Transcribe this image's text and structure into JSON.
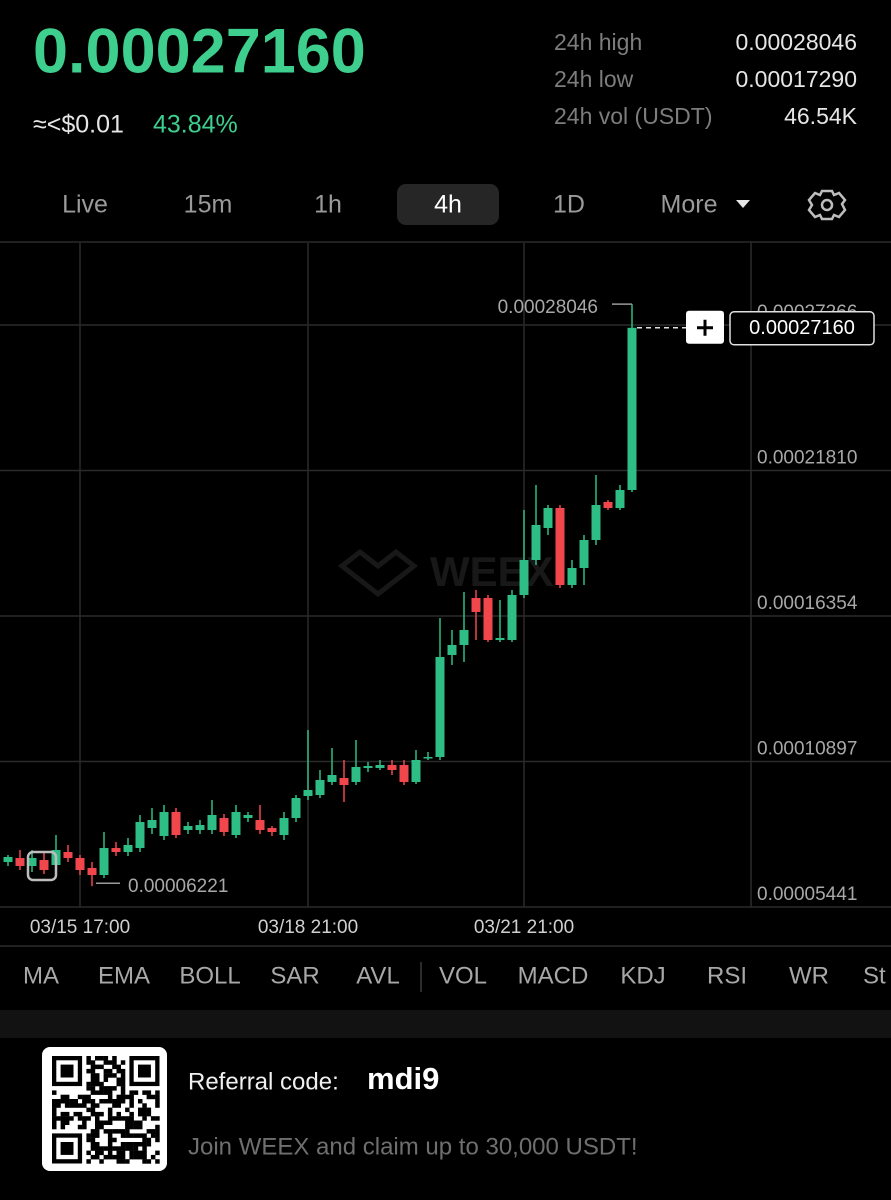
{
  "header": {
    "price": "0.00027160",
    "approx": "≈<$0.01",
    "change": "43.84%",
    "stats": [
      {
        "label": "24h high",
        "value": "0.00028046"
      },
      {
        "label": "24h low",
        "value": "0.00017290"
      },
      {
        "label": "24h vol (USDT)",
        "value": "46.54K"
      }
    ]
  },
  "tabs": [
    "Live",
    "15m",
    "1h",
    "4h",
    "1D",
    "More"
  ],
  "chart_data": {
    "type": "candlestick",
    "up_color": "#2ebd85",
    "down_color": "#f0464c",
    "categories": [
      null,
      null,
      null,
      null,
      null,
      null,
      "03/15 17:00",
      null,
      null,
      null,
      null,
      null,
      null,
      null,
      null,
      null,
      null,
      null,
      null,
      null,
      null,
      null,
      null,
      null,
      null,
      "03/18 21:00",
      null,
      null,
      null,
      null,
      null,
      null,
      null,
      null,
      null,
      null,
      null,
      null,
      null,
      null,
      null,
      null,
      null,
      "03/21 21:00",
      null,
      null,
      null,
      null,
      null,
      null,
      null,
      null,
      null
    ],
    "open": [
      7.128e-05,
      7.278e-05,
      6.978e-05,
      7.203e-05,
      7.016e-05,
      7.503e-05,
      7.278e-05,
      6.903e-05,
      6.641e-05,
      7.653e-05,
      7.503e-05,
      7.653e-05,
      8.403e-05,
      8.103e-05,
      9.003e-05,
      8.328e-05,
      8.328e-05,
      8.328e-05,
      8.778e-05,
      8.141e-05,
      8.778e-05,
      8.703e-05,
      8.403e-05,
      8.141e-05,
      8.778e-05,
      9.603e-05,
      9.641e-05,
      0.00010128,
      0.00010278,
      0.00010128,
      0.00010653,
      0.00010653,
      0.00010766,
      0.00010766,
      0.00010128,
      0.00011028,
      0.00011066,
      0.00014891,
      0.00015266,
      0.00017028,
      0.00017028,
      0.00015453,
      0.00015453,
      0.00017141,
      0.00018453,
      0.00019653,
      0.00020403,
      0.00017516,
      0.00018153,
      0.00019203,
      0.00020628,
      0.00020403,
      0.00021078
    ],
    "high": [
      7.391e-05,
      7.578e-05,
      7.578e-05,
      7.503e-05,
      8.141e-05,
      7.766e-05,
      7.391e-05,
      7.128e-05,
      8.253e-05,
      7.878e-05,
      8.028e-05,
      8.891e-05,
      9.153e-05,
      9.266e-05,
      9.153e-05,
      8.628e-05,
      8.703e-05,
      9.453e-05,
      8.928e-05,
      9.266e-05,
      9.003e-05,
      9.266e-05,
      8.478e-05,
      9.003e-05,
      9.641e-05,
      0.00012078,
      0.00010578,
      0.00011403,
      0.00010953,
      0.00011703,
      0.00010878,
      0.00010953,
      0.00010953,
      0.00010953,
      0.00011328,
      0.00011253,
      0.00016278,
      0.00015828,
      0.00017253,
      0.00017328,
      0.00017141,
      0.00016953,
      0.00017328,
      0.00020328,
      0.00021266,
      0.00020516,
      0.00020516,
      0.00018453,
      0.00019391,
      0.00021641,
      0.00020703,
      0.00021266,
      0.00028046
    ],
    "low": [
      6.978e-05,
      6.828e-05,
      6.753e-05,
      6.678e-05,
      6.903e-05,
      7.128e-05,
      6.641e-05,
      6.221e-05,
      6.528e-05,
      7.353e-05,
      7.353e-05,
      7.503e-05,
      8.178e-05,
      7.953e-05,
      8.028e-05,
      8.178e-05,
      8.178e-05,
      8.178e-05,
      8.103e-05,
      8.028e-05,
      8.628e-05,
      8.178e-05,
      8.103e-05,
      7.953e-05,
      8.628e-05,
      9.453e-05,
      9.528e-05,
      0.00010016,
      9.378e-05,
      0.00010016,
      0.00010503,
      0.00010578,
      0.00010391,
      0.00010016,
      0.00010053,
      0.00010953,
      0.00010953,
      0.00014516,
      0.00014628,
      0.00015453,
      0.00015378,
      0.00015378,
      0.00015378,
      0.00017028,
      0.00018266,
      0.00019391,
      0.00017403,
      0.00017403,
      0.00017516,
      0.00019016,
      0.00020328,
      0.00020328,
      0.00021003
    ],
    "close": [
      7.316e-05,
      6.978e-05,
      7.278e-05,
      6.828e-05,
      7.578e-05,
      7.278e-05,
      6.828e-05,
      6.641e-05,
      7.653e-05,
      7.503e-05,
      7.766e-05,
      8.628e-05,
      8.703e-05,
      9.003e-05,
      8.141e-05,
      8.478e-05,
      8.516e-05,
      8.891e-05,
      8.253e-05,
      9.003e-05,
      8.891e-05,
      8.328e-05,
      8.253e-05,
      8.778e-05,
      9.528e-05,
      9.828e-05,
      0.00010203,
      0.00010391,
      0.00010016,
      0.00010691,
      0.00010728,
      0.00010766,
      0.00010578,
      0.00010128,
      0.00010953,
      0.00011066,
      0.00014816,
      0.00015266,
      0.00015828,
      0.00016503,
      0.00015453,
      0.00015528,
      0.00017141,
      0.00018453,
      0.00019766,
      0.00020403,
      0.00017516,
      0.00018153,
      0.00019203,
      0.00020516,
      0.00020403,
      0.00021078,
      0.0002716
    ],
    "ylim": [
      5.441e-05,
      0.0003034
    ],
    "yticks": [
      5.441e-05,
      0.00010897,
      0.00016354,
      {
        "value": 0.0002181,
        "label": "0.00021810"
      },
      0.00027266
    ],
    "grid": true,
    "annotations": {
      "high": {
        "value": 0.00028046,
        "label": "0.00028046"
      },
      "low": {
        "value": 6.221e-05,
        "label": "0.00006221"
      },
      "last": {
        "value": 0.0002716,
        "label": "0.00027160"
      }
    },
    "watermark": "WEEX"
  },
  "indicators": [
    "MA",
    "EMA",
    "BOLL",
    "SAR",
    "AVL",
    "VOL",
    "MACD",
    "KDJ",
    "RSI",
    "WR",
    "St"
  ],
  "footer": {
    "referral_label": "Referral code:",
    "referral_code": "mdi9",
    "promo": "Join WEEX and claim up to 30,000 USDT!"
  }
}
